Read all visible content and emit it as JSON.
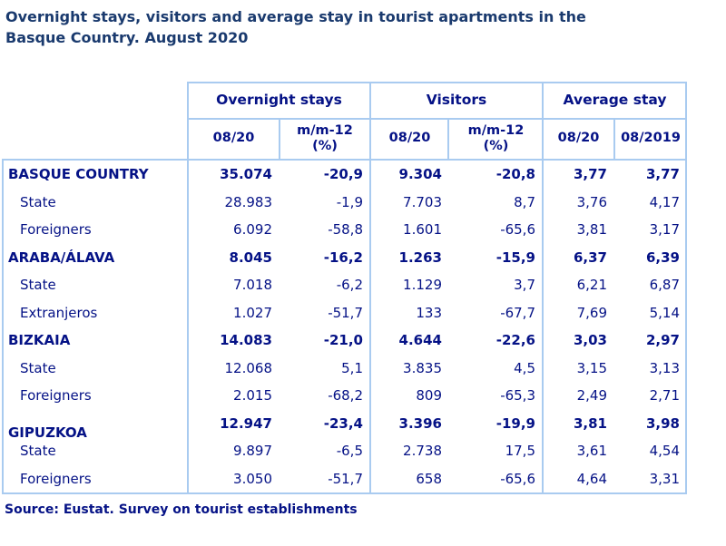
{
  "title": {
    "line1": "Overnight stays, visitors and average stay in tourist apartments in the",
    "line2": "Basque Country. August 2020"
  },
  "source": "Source: Eustat. Survey on tourist establishments",
  "colors": {
    "title_navy": "#1A3A6E",
    "table_navy": "#051286",
    "border_light_blue": "#A9CBF0",
    "background": "#FFFFFF"
  },
  "table": {
    "groups": [
      {
        "label": "Overnight stays"
      },
      {
        "label": "Visitors"
      },
      {
        "label": "Average stay"
      }
    ],
    "subheaders": [
      "08/20",
      "m/m-12 (%)",
      "08/20",
      "m/m-12 (%)",
      "08/20",
      "08/2019"
    ],
    "rows": [
      {
        "label": "BASQUE COUNTRY",
        "bold": true,
        "indent": false,
        "offset": false,
        "values": [
          "35.074",
          "-20,9",
          "9.304",
          "-20,8",
          "3,77",
          "3,77"
        ]
      },
      {
        "label": "State",
        "bold": false,
        "indent": true,
        "offset": false,
        "values": [
          "28.983",
          "-1,9",
          "7.703",
          "8,7",
          "3,76",
          "4,17"
        ]
      },
      {
        "label": "Foreigners",
        "bold": false,
        "indent": true,
        "offset": false,
        "values": [
          "6.092",
          "-58,8",
          "1.601",
          "-65,6",
          "3,81",
          "3,17"
        ]
      },
      {
        "label": "ARABA/ÁLAVA",
        "bold": true,
        "indent": false,
        "offset": false,
        "values": [
          "8.045",
          "-16,2",
          "1.263",
          "-15,9",
          "6,37",
          "6,39"
        ]
      },
      {
        "label": "State",
        "bold": false,
        "indent": true,
        "offset": false,
        "values": [
          "7.018",
          "-6,2",
          "1.129",
          "3,7",
          "6,21",
          "6,87"
        ]
      },
      {
        "label": "Extranjeros",
        "bold": false,
        "indent": true,
        "offset": false,
        "values": [
          "1.027",
          "-51,7",
          "133",
          "-67,7",
          "7,69",
          "5,14"
        ]
      },
      {
        "label": "BIZKAIA",
        "bold": true,
        "indent": false,
        "offset": false,
        "values": [
          "14.083",
          "-21,0",
          "4.644",
          "-22,6",
          "3,03",
          "2,97"
        ]
      },
      {
        "label": "State",
        "bold": false,
        "indent": true,
        "offset": false,
        "values": [
          "12.068",
          "5,1",
          "3.835",
          "4,5",
          "3,15",
          "3,13"
        ]
      },
      {
        "label": "Foreigners",
        "bold": false,
        "indent": true,
        "offset": false,
        "values": [
          "2.015",
          "-68,2",
          "809",
          "-65,3",
          "2,49",
          "2,71"
        ]
      },
      {
        "label": "GIPUZKOA",
        "bold": true,
        "indent": false,
        "offset": true,
        "values": [
          "12.947",
          "-23,4",
          "3.396",
          "-19,9",
          "3,81",
          "3,98"
        ]
      },
      {
        "label": "State",
        "bold": false,
        "indent": true,
        "offset": false,
        "values": [
          "9.897",
          "-6,5",
          "2.738",
          "17,5",
          "3,61",
          "4,54"
        ]
      },
      {
        "label": "Foreigners",
        "bold": false,
        "indent": true,
        "offset": false,
        "values": [
          "3.050",
          "-51,7",
          "658",
          "-65,6",
          "4,64",
          "3,31"
        ]
      }
    ]
  },
  "chart_data": {
    "type": "table",
    "title": "Overnight stays, visitors and average stay in tourist apartments in the Basque Country. August 2020",
    "column_groups": [
      "Overnight stays",
      "Visitors",
      "Average stay"
    ],
    "columns": [
      "Overnight stays 08/20",
      "Overnight stays m/m-12 (%)",
      "Visitors 08/20",
      "Visitors m/m-12 (%)",
      "Average stay 08/20",
      "Average stay 08/2019"
    ],
    "rows": [
      {
        "label": "BASQUE COUNTRY",
        "values": [
          35074,
          -20.9,
          9304,
          -20.8,
          3.77,
          3.77
        ]
      },
      {
        "label": "State",
        "values": [
          28983,
          -1.9,
          7703,
          8.7,
          3.76,
          4.17
        ]
      },
      {
        "label": "Foreigners",
        "values": [
          6092,
          -58.8,
          1601,
          -65.6,
          3.81,
          3.17
        ]
      },
      {
        "label": "ARABA/ÁLAVA",
        "values": [
          8045,
          -16.2,
          1263,
          -15.9,
          6.37,
          6.39
        ]
      },
      {
        "label": "State",
        "values": [
          7018,
          -6.2,
          1129,
          3.7,
          6.21,
          6.87
        ]
      },
      {
        "label": "Extranjeros",
        "values": [
          1027,
          -51.7,
          133,
          -67.7,
          7.69,
          5.14
        ]
      },
      {
        "label": "BIZKAIA",
        "values": [
          14083,
          -21.0,
          4644,
          -22.6,
          3.03,
          2.97
        ]
      },
      {
        "label": "State",
        "values": [
          12068,
          5.1,
          3835,
          4.5,
          3.15,
          3.13
        ]
      },
      {
        "label": "Foreigners",
        "values": [
          2015,
          -68.2,
          809,
          -65.3,
          2.49,
          2.71
        ]
      },
      {
        "label": "GIPUZKOA",
        "values": [
          12947,
          -23.4,
          3396,
          -19.9,
          3.81,
          3.98
        ]
      },
      {
        "label": "State",
        "values": [
          9897,
          -6.5,
          2738,
          17.5,
          3.61,
          4.54
        ]
      },
      {
        "label": "Foreigners",
        "values": [
          3050,
          -51.7,
          658,
          -65.6,
          4.64,
          3.31
        ]
      }
    ],
    "source": "Source: Eustat. Survey on tourist establishments"
  }
}
